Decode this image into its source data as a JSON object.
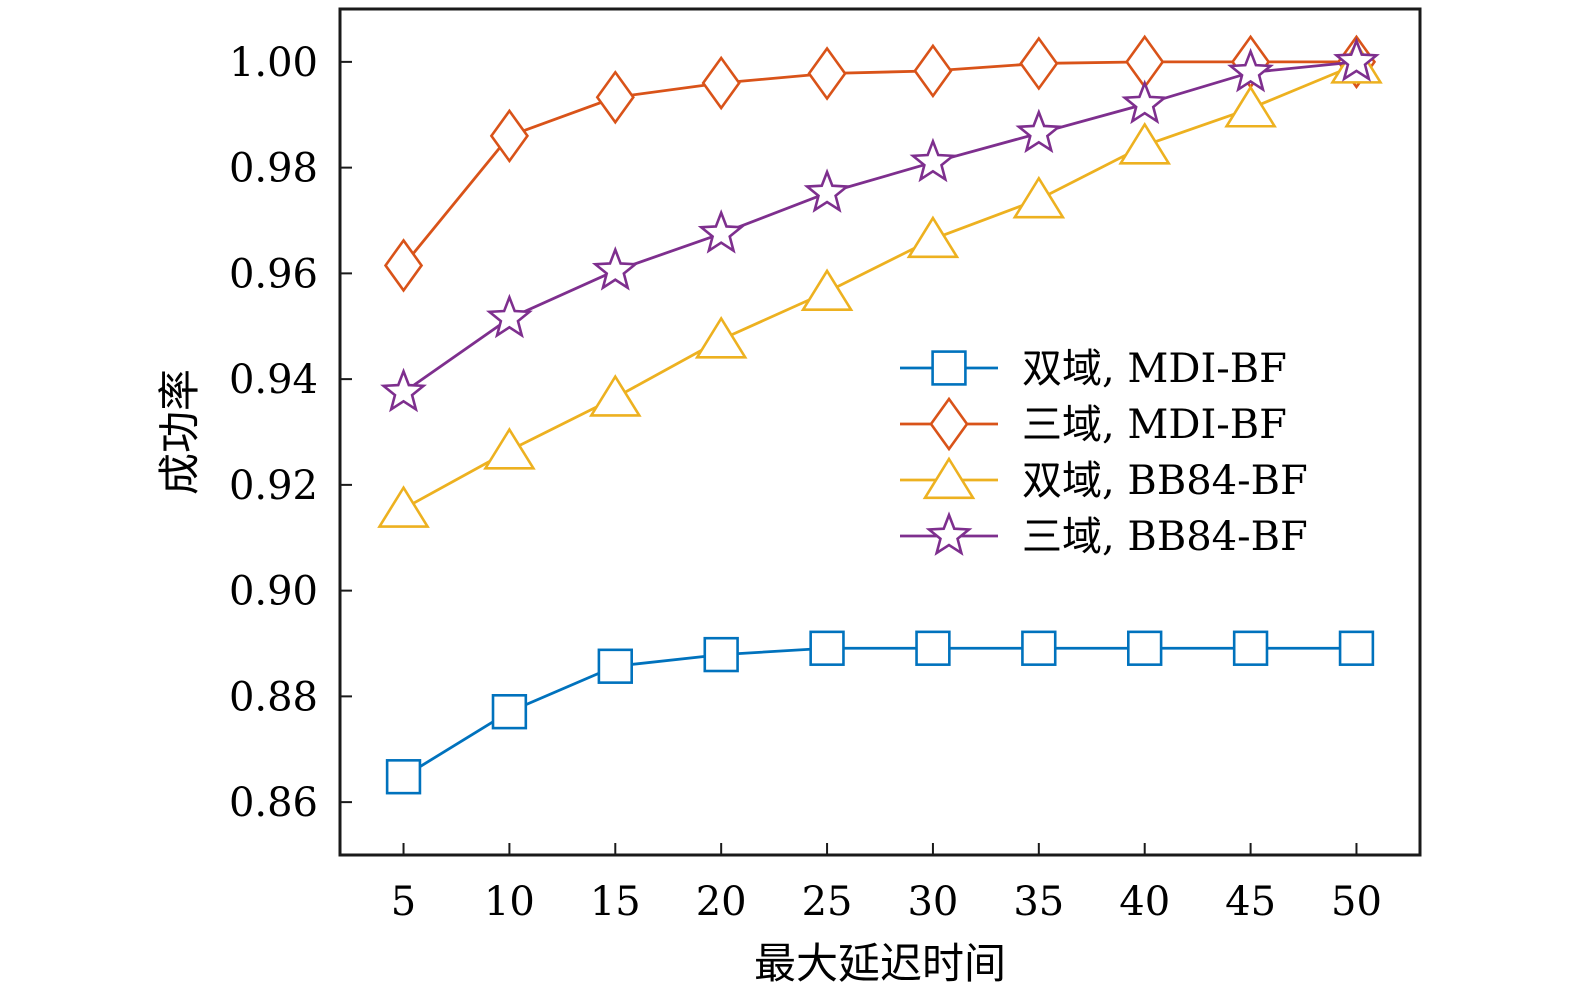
{
  "chart_data": {
    "type": "line",
    "title": "",
    "xlabel": "最大延迟时间",
    "ylabel": "成功率",
    "x": [
      5,
      10,
      15,
      20,
      25,
      30,
      35,
      40,
      45,
      50
    ],
    "xlim": [
      2,
      53
    ],
    "ylim": [
      0.85,
      1.01
    ],
    "xticks": [
      "5",
      "10",
      "15",
      "20",
      "25",
      "30",
      "35",
      "40",
      "45",
      "50"
    ],
    "yticks": [
      0.86,
      0.88,
      0.9,
      0.92,
      0.94,
      0.96,
      0.98,
      1.0
    ],
    "ytick_labels": [
      "0.86",
      "0.88",
      "0.90",
      "0.92",
      "0.94",
      "0.96",
      "0.98",
      "1.00"
    ],
    "grid": false,
    "legend_position": "center-right",
    "series": [
      {
        "name": "双域, MDI-BF",
        "marker": "square",
        "color": "#0072BD",
        "values": [
          0.8648,
          0.8771,
          0.8857,
          0.8879,
          0.8891,
          0.8891,
          0.8891,
          0.8891,
          0.8891,
          0.8891
        ]
      },
      {
        "name": "三域, MDI-BF",
        "marker": "diamond",
        "color": "#D95319",
        "values": [
          0.9615,
          0.986,
          0.9933,
          0.996,
          0.9978,
          0.9983,
          0.9997,
          1.0,
          1.0,
          1.0
        ]
      },
      {
        "name": "双域, BB84-BF",
        "marker": "triangle",
        "color": "#EDB120",
        "values": [
          0.9155,
          0.9265,
          0.9365,
          0.9475,
          0.9565,
          0.9665,
          0.974,
          0.9842,
          0.9912,
          0.9995
        ]
      },
      {
        "name": "三域, BB84-BF",
        "marker": "star",
        "color": "#7E2F8E",
        "values": [
          0.9375,
          0.9515,
          0.9605,
          0.9675,
          0.9752,
          0.981,
          0.9865,
          0.992,
          0.998,
          1.0
        ]
      }
    ]
  }
}
